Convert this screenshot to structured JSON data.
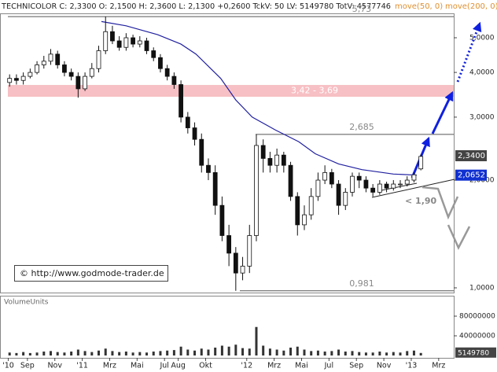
{
  "chart_data": {
    "type": "candlestick",
    "header": "TECHNICOLOR C: 2,3300 O: 2,1500 H: 2,3600 L: 2,1300 +0,2600 TckV: 50 LV: 5149780 TotV: 4577746",
    "indicators": [
      "move(50, 0)",
      "move(200, 0)"
    ],
    "copyright": "© http://www.godmode-trader.de",
    "volume_title": "VolumeUnits",
    "log_scale": true,
    "xlim": [
      6,
      39.1
    ],
    "xticks": [
      {
        "value": 6.6,
        "label": "'10"
      },
      {
        "value": 8,
        "label": "Sep"
      },
      {
        "value": 10,
        "label": "Nov"
      },
      {
        "value": 12,
        "label": "'11"
      },
      {
        "value": 14,
        "label": "Mrz"
      },
      {
        "value": 16,
        "label": "Mai"
      },
      {
        "value": 18,
        "label": "Jul"
      },
      {
        "value": 19,
        "label": "Aug"
      },
      {
        "value": 21,
        "label": "Okt"
      },
      {
        "value": 24,
        "label": "'12"
      },
      {
        "value": 26,
        "label": "Mrz"
      },
      {
        "value": 28,
        "label": "Mai"
      },
      {
        "value": 30,
        "label": "Jul"
      },
      {
        "value": 32,
        "label": "Sep"
      },
      {
        "value": 34,
        "label": "Nov"
      },
      {
        "value": 36,
        "label": "'13"
      },
      {
        "value": 38,
        "label": "Mrz"
      }
    ],
    "ylim": [
      0.97,
      5.82
    ],
    "yticks": [
      {
        "value": 1,
        "label": "1,0000"
      },
      {
        "value": 2,
        "label": "2,0000"
      },
      {
        "value": 3,
        "label": "3,0000"
      },
      {
        "value": 4,
        "label": "4,0000"
      },
      {
        "value": 5,
        "label": "5,0000"
      }
    ],
    "x": [
      6.7,
      7.2,
      7.7,
      8.2,
      8.7,
      9.2,
      9.7,
      10.2,
      10.7,
      11.2,
      11.7,
      12.2,
      12.7,
      13.2,
      13.7,
      14.2,
      14.7,
      15.2,
      15.7,
      16.2,
      16.7,
      17.2,
      17.7,
      18.2,
      18.7,
      19.2,
      19.7,
      20.2,
      20.7,
      21.2,
      21.7,
      22.2,
      22.7,
      23.2,
      23.7,
      24.2,
      24.7,
      25.2,
      25.7,
      26.2,
      26.7,
      27.2,
      27.7,
      28.2,
      28.7,
      29.2,
      29.7,
      30.2,
      30.7,
      31.2,
      31.7,
      32.2,
      32.7,
      33.2,
      33.7,
      34.2,
      34.7,
      35.2,
      35.7,
      36.2,
      36.7
    ],
    "open": [
      3.75,
      3.85,
      3.8,
      3.9,
      4.0,
      4.2,
      4.3,
      4.5,
      4.2,
      4.0,
      3.9,
      3.6,
      3.9,
      4.1,
      4.6,
      5.2,
      4.9,
      4.7,
      5.0,
      4.8,
      4.9,
      4.6,
      4.4,
      4.1,
      3.9,
      3.7,
      3.0,
      2.8,
      2.6,
      2.2,
      2.1,
      1.7,
      1.4,
      1.25,
      1.1,
      1.15,
      1.4,
      2.5,
      2.3,
      2.2,
      2.35,
      2.2,
      1.8,
      1.5,
      1.6,
      1.8,
      2.0,
      2.1,
      1.95,
      1.7,
      1.85,
      2.05,
      2.0,
      1.9,
      1.85,
      1.95,
      1.9,
      1.95,
      1.95,
      2.0,
      2.15
    ],
    "high": [
      3.95,
      3.95,
      4.0,
      4.1,
      4.3,
      4.45,
      4.65,
      4.6,
      4.3,
      4.1,
      4.0,
      4.0,
      4.25,
      4.75,
      5.73,
      5.4,
      5.05,
      5.15,
      5.1,
      5.05,
      5.0,
      4.7,
      4.5,
      4.2,
      4.0,
      3.8,
      3.1,
      2.9,
      2.7,
      2.3,
      2.2,
      1.8,
      1.5,
      1.3,
      1.22,
      1.5,
      2.685,
      2.6,
      2.4,
      2.45,
      2.4,
      2.25,
      1.85,
      1.7,
      1.9,
      2.1,
      2.2,
      2.15,
      2.0,
      1.9,
      2.1,
      2.1,
      2.05,
      1.95,
      2.0,
      1.98,
      2.0,
      2.0,
      2.05,
      2.1,
      2.36
    ],
    "low": [
      3.65,
      3.7,
      3.7,
      3.85,
      3.95,
      4.1,
      4.2,
      4.1,
      3.9,
      3.8,
      3.4,
      3.55,
      3.85,
      4.0,
      4.5,
      4.8,
      4.6,
      4.6,
      4.7,
      4.7,
      4.5,
      4.3,
      4.0,
      3.8,
      3.6,
      2.9,
      2.7,
      2.5,
      2.1,
      2.0,
      1.6,
      1.35,
      1.15,
      0.981,
      1.05,
      1.1,
      1.35,
      2.1,
      2.1,
      2.1,
      2.1,
      1.75,
      1.4,
      1.45,
      1.55,
      1.75,
      1.95,
      1.9,
      1.6,
      1.65,
      1.8,
      1.9,
      1.85,
      1.8,
      1.82,
      1.85,
      1.87,
      1.9,
      1.92,
      1.97,
      2.13
    ],
    "close": [
      3.85,
      3.8,
      3.9,
      4.0,
      4.2,
      4.3,
      4.5,
      4.2,
      4.0,
      3.9,
      3.6,
      3.9,
      4.1,
      4.6,
      5.2,
      4.9,
      4.7,
      5.0,
      4.8,
      4.9,
      4.6,
      4.4,
      4.1,
      3.9,
      3.7,
      3.0,
      2.8,
      2.6,
      2.2,
      2.1,
      1.7,
      1.4,
      1.25,
      1.1,
      1.15,
      1.4,
      2.5,
      2.3,
      2.2,
      2.35,
      2.2,
      1.8,
      1.5,
      1.6,
      1.8,
      2.0,
      2.1,
      1.95,
      1.7,
      1.85,
      2.05,
      2.0,
      1.9,
      1.85,
      1.95,
      1.9,
      1.95,
      1.95,
      2.0,
      2.07,
      2.33
    ],
    "moving_average": {
      "color": "#2020a0",
      "x": [
        13.4,
        15.2,
        17.5,
        19.2,
        20.3,
        22.1,
        23.2,
        24.4,
        26.1,
        27.8,
        29.0,
        30.7,
        32.4,
        34.7,
        36.4
      ],
      "values": [
        5.55,
        5.4,
        5.1,
        4.8,
        4.5,
        3.85,
        3.35,
        3.0,
        2.76,
        2.56,
        2.37,
        2.22,
        2.14,
        2.08,
        2.0652
      ],
      "last_label": "2,0652"
    },
    "price_marker": {
      "value": 2.34,
      "label": "2,3400"
    },
    "levels": [
      {
        "value": 5.73,
        "label": "5,73"
      },
      {
        "value": 2.685,
        "label": "2,685"
      },
      {
        "value": 0.981,
        "label": "0,981"
      }
    ],
    "zone": {
      "low": 3.42,
      "high": 3.69,
      "label": "3,42 - 3,69",
      "color": "#f7c0c4"
    },
    "target_note": "< 1,90",
    "volume": [
      6000000,
      5000000,
      7000000,
      5000000,
      6000000,
      8000000,
      9000000,
      7000000,
      6000000,
      8000000,
      12000000,
      9000000,
      7000000,
      10000000,
      14000000,
      9000000,
      7000000,
      8000000,
      6000000,
      7000000,
      6000000,
      8000000,
      9000000,
      10000000,
      11000000,
      18000000,
      12000000,
      10000000,
      14000000,
      12000000,
      16000000,
      20000000,
      18000000,
      22000000,
      15000000,
      14000000,
      58000000,
      20000000,
      14000000,
      12000000,
      10000000,
      16000000,
      18000000,
      12000000,
      9000000,
      10000000,
      8000000,
      9000000,
      12000000,
      8000000,
      9000000,
      7000000,
      6000000,
      6000000,
      8000000,
      6000000,
      7000000,
      6000000,
      9000000,
      10000000,
      5149780
    ],
    "volume_ylim": [
      0,
      96000000
    ],
    "volume_yticks": [
      40000000,
      80000000
    ]
  }
}
